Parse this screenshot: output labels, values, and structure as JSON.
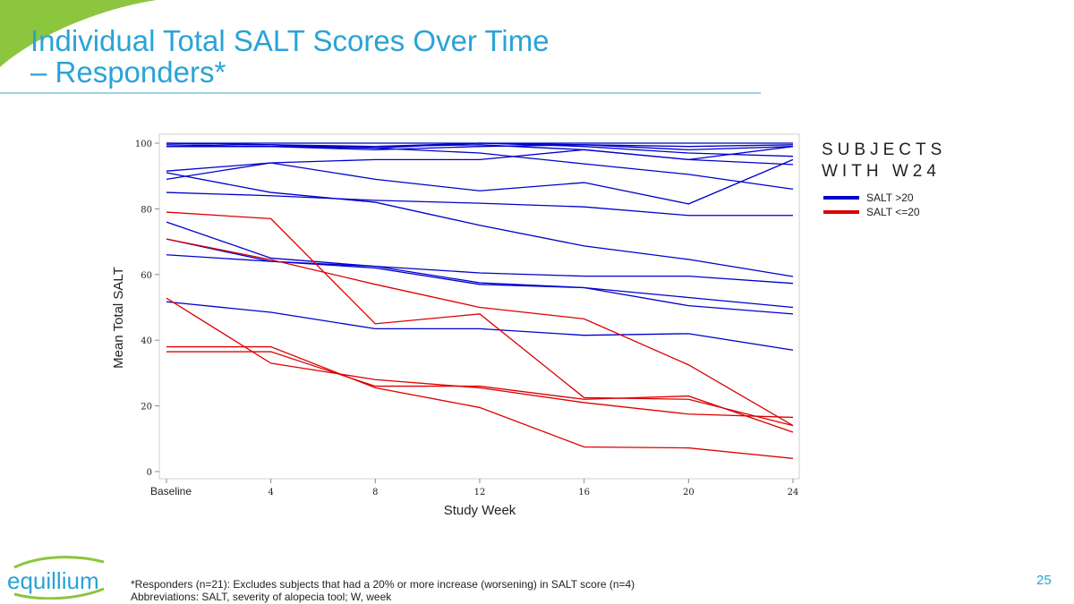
{
  "slide": {
    "title_line1": "Individual Total SALT Scores Over Time",
    "title_line2": "– Responders*",
    "page_number": "25",
    "footnote_line1": "*Responders (n=21): Excludes subjects that had a 20% or more increase (worsening) in SALT score (n=4)",
    "footnote_line2": "Abbreviations: SALT, severity of alopecia tool; W, week",
    "logo_text": "equillium",
    "accent": "#2aa3d6"
  },
  "chart_data": {
    "type": "line",
    "title": "",
    "xlabel": "Study Week",
    "ylabel": "Mean Total SALT",
    "x": [
      0,
      4,
      8,
      12,
      16,
      20,
      24
    ],
    "x_tick_labels": [
      "Baseline",
      "4",
      "8",
      "12",
      "16",
      "20",
      "24"
    ],
    "y_ticks": [
      0,
      20,
      40,
      60,
      80,
      100
    ],
    "ylim": [
      0,
      100
    ],
    "grid": false,
    "legend": {
      "title": "SUBJECTS WITH W24",
      "placement": "right",
      "entries": [
        {
          "label": "SALT >20",
          "color": "#0000cc"
        },
        {
          "label": "SALT <=20",
          "color": "#dd0000"
        }
      ]
    },
    "series": [
      {
        "group": "SALT >20",
        "values": [
          100,
          100,
          100,
          100,
          100,
          100,
          100
        ]
      },
      {
        "group": "SALT >20",
        "values": [
          100,
          99.5,
          98.5,
          100,
          99.5,
          99,
          99.5
        ]
      },
      {
        "group": "SALT >20",
        "values": [
          99.5,
          99,
          98,
          99,
          99.5,
          98,
          99
        ]
      },
      {
        "group": "SALT >20",
        "values": [
          99,
          99,
          98.5,
          97,
          93.7,
          90.5,
          86
        ]
      },
      {
        "group": "SALT >20",
        "values": [
          99,
          99,
          99,
          99.5,
          98,
          95,
          93.5
        ]
      },
      {
        "group": "SALT >20",
        "values": [
          100,
          99.5,
          99,
          100,
          99,
          97,
          96
        ]
      },
      {
        "group": "SALT >20",
        "values": [
          91.5,
          94,
          95,
          95,
          98,
          95,
          99
        ]
      },
      {
        "group": "SALT >20",
        "values": [
          89,
          94,
          89,
          85.5,
          88,
          81.5,
          95
        ]
      },
      {
        "group": "SALT >20",
        "values": [
          91,
          85,
          82,
          75,
          68.7,
          64.6,
          59.4
        ]
      },
      {
        "group": "SALT >20",
        "values": [
          85,
          84,
          82.6,
          81.7,
          80.6,
          78,
          78
        ]
      },
      {
        "group": "SALT >20",
        "values": [
          76,
          65,
          62.5,
          57.5,
          56,
          50.5,
          48
        ]
      },
      {
        "group": "SALT >20",
        "values": [
          70.8,
          64,
          62,
          57,
          56,
          53,
          50
        ]
      },
      {
        "group": "SALT >20",
        "values": [
          66,
          64,
          62.5,
          60.5,
          59.5,
          59.5,
          57.3
        ]
      },
      {
        "group": "SALT >20",
        "values": [
          51.7,
          48.5,
          43.5,
          43.5,
          41.5,
          42,
          37
        ]
      },
      {
        "group": "SALT <=20",
        "values": [
          79,
          77,
          45,
          48,
          22.5,
          22,
          14
        ]
      },
      {
        "group": "SALT <=20",
        "values": [
          70.8,
          64.5,
          57,
          50,
          46.5,
          32.5,
          14
        ]
      },
      {
        "group": "SALT <=20",
        "values": [
          52.8,
          33,
          28,
          25.5,
          21,
          17.5,
          16.5
        ]
      },
      {
        "group": "SALT <=20",
        "values": [
          38,
          38,
          25.5,
          19.5,
          7.5,
          7.2,
          4
        ]
      },
      {
        "group": "SALT <=20",
        "values": [
          36.5,
          36.5,
          26,
          26,
          22,
          23,
          12
        ]
      }
    ]
  }
}
